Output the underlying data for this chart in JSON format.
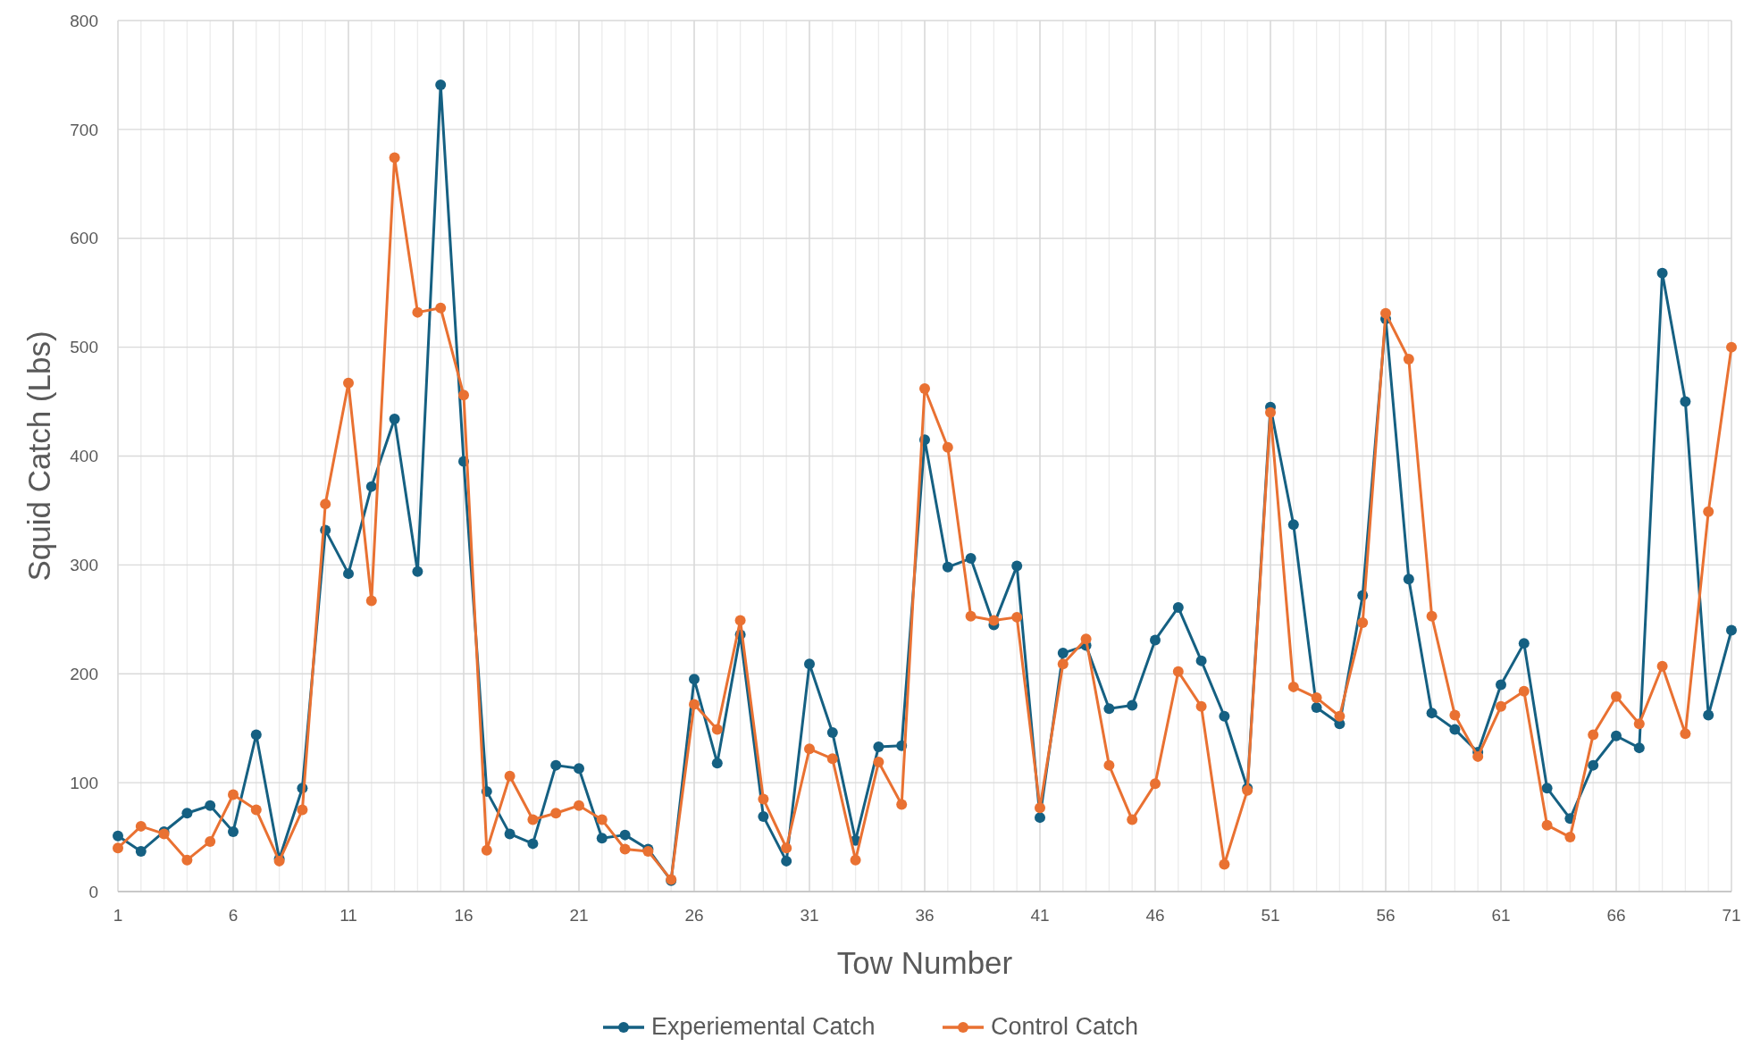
{
  "chart_data": {
    "type": "line",
    "xlabel": "Tow Number",
    "ylabel": "Squid Catch (Lbs)",
    "x": [
      1,
      2,
      3,
      4,
      5,
      6,
      7,
      8,
      9,
      10,
      11,
      12,
      13,
      14,
      15,
      16,
      17,
      18,
      19,
      20,
      21,
      22,
      23,
      24,
      25,
      26,
      27,
      28,
      29,
      30,
      31,
      32,
      33,
      34,
      35,
      36,
      37,
      38,
      39,
      40,
      41,
      42,
      43,
      44,
      45,
      46,
      47,
      48,
      49,
      50,
      51,
      52,
      53,
      54,
      55,
      56,
      57,
      58,
      59,
      60,
      61,
      62,
      63,
      64,
      65,
      66,
      67,
      68,
      69,
      70,
      71
    ],
    "xlim": [
      1,
      71
    ],
    "xticks": [
      1,
      {
        "value": 2,
        "label": null
      },
      {
        "value": 3,
        "label": null
      },
      {
        "value": 4,
        "label": null
      },
      {
        "value": 5,
        "label": null
      },
      6,
      {
        "value": 7,
        "label": null
      },
      {
        "value": 8,
        "label": null
      },
      {
        "value": 9,
        "label": null
      },
      {
        "value": 10,
        "label": null
      },
      11,
      {
        "value": 12,
        "label": null
      },
      {
        "value": 13,
        "label": null
      },
      {
        "value": 14,
        "label": null
      },
      {
        "value": 15,
        "label": null
      },
      16,
      {
        "value": 17,
        "label": null
      },
      {
        "value": 18,
        "label": null
      },
      {
        "value": 19,
        "label": null
      },
      {
        "value": 20,
        "label": null
      },
      21,
      {
        "value": 22,
        "label": null
      },
      {
        "value": 23,
        "label": null
      },
      {
        "value": 24,
        "label": null
      },
      {
        "value": 25,
        "label": null
      },
      26,
      {
        "value": 27,
        "label": null
      },
      {
        "value": 28,
        "label": null
      },
      {
        "value": 29,
        "label": null
      },
      {
        "value": 30,
        "label": null
      },
      31,
      {
        "value": 32,
        "label": null
      },
      {
        "value": 33,
        "label": null
      },
      {
        "value": 34,
        "label": null
      },
      {
        "value": 35,
        "label": null
      },
      36,
      {
        "value": 37,
        "label": null
      },
      {
        "value": 38,
        "label": null
      },
      {
        "value": 39,
        "label": null
      },
      {
        "value": 40,
        "label": null
      },
      41,
      {
        "value": 42,
        "label": null
      },
      {
        "value": 43,
        "label": null
      },
      {
        "value": 44,
        "label": null
      },
      {
        "value": 45,
        "label": null
      },
      46,
      {
        "value": 47,
        "label": null
      },
      {
        "value": 48,
        "label": null
      },
      {
        "value": 49,
        "label": null
      },
      {
        "value": 50,
        "label": null
      },
      51,
      {
        "value": 52,
        "label": null
      },
      {
        "value": 53,
        "label": null
      },
      {
        "value": 54,
        "label": null
      },
      {
        "value": 55,
        "label": null
      },
      56,
      {
        "value": 57,
        "label": null
      },
      {
        "value": 58,
        "label": null
      },
      {
        "value": 59,
        "label": null
      },
      {
        "value": 60,
        "label": null
      },
      61,
      {
        "value": 62,
        "label": null
      },
      {
        "value": 63,
        "label": null
      },
      {
        "value": 64,
        "label": null
      },
      {
        "value": 65,
        "label": null
      },
      66,
      {
        "value": 67,
        "label": null
      },
      {
        "value": 68,
        "label": null
      },
      {
        "value": 69,
        "label": null
      },
      {
        "value": 70,
        "label": null
      },
      71
    ],
    "ylim": [
      0,
      800
    ],
    "yticks": [
      0,
      100,
      200,
      300,
      400,
      500,
      600,
      700,
      800
    ],
    "grid": true,
    "legend": "bottom",
    "marker": "circle",
    "line_style": "solid",
    "series": [
      {
        "name": "Experiemental Catch",
        "color": "#156082",
        "values": [
          51,
          37,
          55,
          72,
          79,
          55,
          144,
          30,
          95,
          332,
          292,
          372,
          434,
          294,
          741,
          395,
          92,
          53,
          44,
          116,
          113,
          49,
          52,
          39,
          10,
          195,
          118,
          236,
          69,
          28,
          209,
          146,
          47,
          133,
          134,
          415,
          298,
          306,
          245,
          299,
          68,
          219,
          226,
          168,
          171,
          231,
          261,
          212,
          161,
          95,
          445,
          337,
          169,
          154,
          272,
          526,
          287,
          164,
          149,
          128,
          190,
          228,
          95,
          67,
          116,
          143,
          132,
          568,
          450,
          162,
          240
        ]
      },
      {
        "name": "Control Catch",
        "color": "#e97132",
        "values": [
          40,
          60,
          53,
          29,
          46,
          89,
          75,
          28,
          75,
          356,
          467,
          267,
          674,
          532,
          536,
          456,
          38,
          106,
          66,
          72,
          79,
          66,
          39,
          37,
          11,
          172,
          149,
          249,
          85,
          40,
          131,
          122,
          29,
          119,
          80,
          462,
          408,
          253,
          249,
          252,
          77,
          209,
          232,
          116,
          66,
          99,
          202,
          170,
          25,
          93,
          440,
          188,
          178,
          161,
          247,
          531,
          489,
          253,
          162,
          124,
          170,
          184,
          61,
          50,
          144,
          179,
          154,
          207,
          145,
          349,
          500
        ]
      }
    ]
  }
}
